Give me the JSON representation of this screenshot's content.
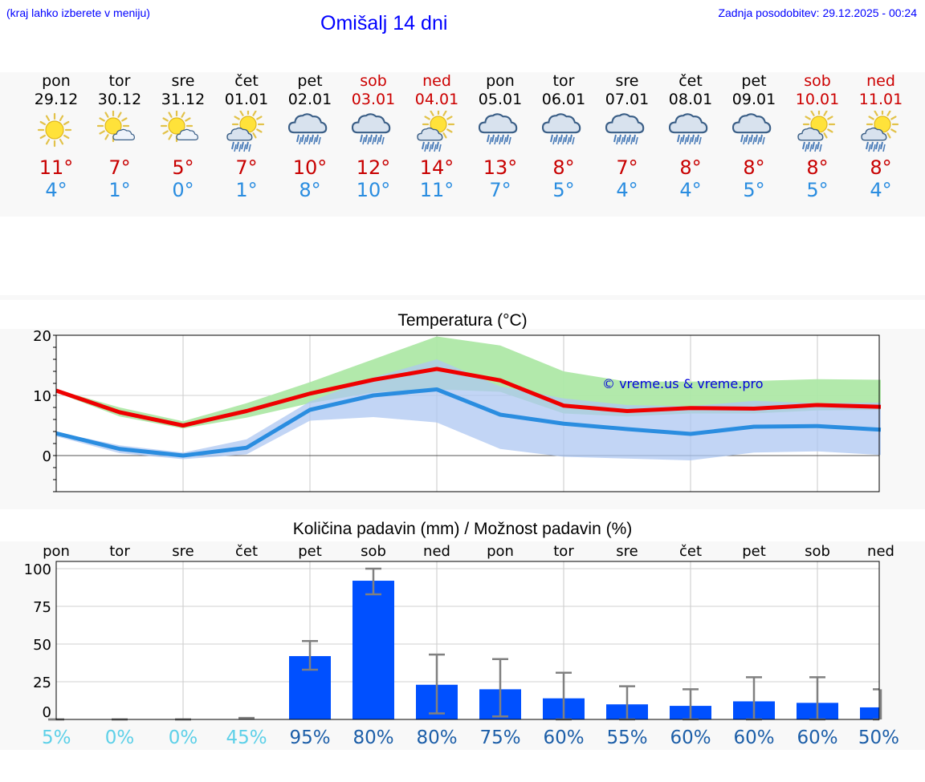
{
  "header": {
    "location_hint": "(kraj lahko izberete v meniju)",
    "title": "Omišalj 14 dni",
    "updated": "Zadnja posodobitev: 29.12.2025 - 00:24"
  },
  "days": [
    {
      "name": "pon",
      "date": "29.12",
      "weekend": false,
      "icon": "sun-icon",
      "tmax": "11°",
      "tmin": "4°"
    },
    {
      "name": "tor",
      "date": "30.12",
      "weekend": false,
      "icon": "sun-cloud-icon",
      "tmax": "7°",
      "tmin": "1°"
    },
    {
      "name": "sre",
      "date": "31.12",
      "weekend": false,
      "icon": "sun-cloud-icon",
      "tmax": "5°",
      "tmin": "0°"
    },
    {
      "name": "čet",
      "date": "01.01",
      "weekend": false,
      "icon": "sun-rain-icon",
      "tmax": "7°",
      "tmin": "1°"
    },
    {
      "name": "pet",
      "date": "02.01",
      "weekend": false,
      "icon": "rain-cloud-icon",
      "tmax": "10°",
      "tmin": "8°"
    },
    {
      "name": "sob",
      "date": "03.01",
      "weekend": true,
      "icon": "rain-cloud-icon",
      "tmax": "12°",
      "tmin": "10°"
    },
    {
      "name": "ned",
      "date": "04.01",
      "weekend": true,
      "icon": "sun-rain-icon",
      "tmax": "14°",
      "tmin": "11°"
    },
    {
      "name": "pon",
      "date": "05.01",
      "weekend": false,
      "icon": "rain-cloud-icon",
      "tmax": "13°",
      "tmin": "7°"
    },
    {
      "name": "tor",
      "date": "06.01",
      "weekend": false,
      "icon": "rain-cloud-icon",
      "tmax": "8°",
      "tmin": "5°"
    },
    {
      "name": "sre",
      "date": "07.01",
      "weekend": false,
      "icon": "rain-cloud-icon",
      "tmax": "7°",
      "tmin": "4°"
    },
    {
      "name": "čet",
      "date": "08.01",
      "weekend": false,
      "icon": "rain-cloud-icon",
      "tmax": "8°",
      "tmin": "4°"
    },
    {
      "name": "pet",
      "date": "09.01",
      "weekend": false,
      "icon": "rain-cloud-icon",
      "tmax": "8°",
      "tmin": "5°"
    },
    {
      "name": "sob",
      "date": "10.01",
      "weekend": true,
      "icon": "sun-rain-icon",
      "tmax": "8°",
      "tmin": "5°"
    },
    {
      "name": "ned",
      "date": "11.01",
      "weekend": true,
      "icon": "sun-rain-icon",
      "tmax": "8°",
      "tmin": "4°"
    }
  ],
  "colors": {
    "max_line": "#ee0000",
    "min_line": "#2a8de0",
    "max_band": "#aee8a6",
    "min_band": "#adc7f2",
    "overlap_band": "#7cc49e",
    "bar": "#0050ff",
    "error": "#808080",
    "pct_low": "#5dd0e8",
    "pct_high": "#1c5ea8"
  },
  "chart_data": [
    {
      "type": "line",
      "title": "Temperatura (°C)",
      "watermark": "© vreme.us & vreme.pro",
      "ylim": [
        -6,
        20
      ],
      "yticks": [
        0,
        10,
        20
      ],
      "x": [
        0,
        1,
        2,
        3,
        4,
        5,
        6,
        7,
        8,
        9,
        10,
        11,
        12,
        13
      ],
      "series": [
        {
          "name": "max",
          "values": [
            10.8,
            7.2,
            5.0,
            7.4,
            10.3,
            12.6,
            14.4,
            12.5,
            8.3,
            7.4,
            7.9,
            7.8,
            8.4,
            8.1
          ]
        },
        {
          "name": "min",
          "values": [
            3.7,
            1.1,
            0.0,
            1.3,
            7.6,
            10.0,
            11.0,
            6.8,
            5.3,
            4.4,
            3.6,
            4.8,
            4.9,
            4.3
          ]
        }
      ],
      "max_band": {
        "low": [
          10.5,
          6.5,
          4.5,
          6.3,
          8.7,
          10.5,
          11.0,
          10.6,
          7.0,
          6.5,
          7.0,
          7.0,
          7.5,
          7.6
        ],
        "high": [
          11.0,
          8.0,
          5.7,
          8.7,
          12.2,
          16.0,
          19.8,
          18.3,
          14.0,
          12.3,
          12.3,
          12.4,
          12.7,
          12.6
        ]
      },
      "min_band": {
        "low": [
          3.2,
          0.4,
          -0.6,
          0.2,
          5.8,
          6.4,
          5.5,
          1.1,
          -0.2,
          -0.5,
          -0.8,
          0.5,
          0.7,
          0.1
        ],
        "high": [
          3.9,
          1.7,
          0.5,
          2.7,
          9.0,
          13.0,
          16.0,
          11.5,
          9.5,
          8.4,
          8.2,
          9.1,
          8.7,
          8.8
        ]
      }
    },
    {
      "type": "bar",
      "title": "Količina padavin (mm) / Možnost padavin (%)",
      "categories": [
        "pon",
        "tor",
        "sre",
        "čet",
        "pet",
        "sob",
        "ned",
        "pon",
        "tor",
        "sre",
        "čet",
        "pet",
        "sob",
        "ned"
      ],
      "ylim": [
        0,
        100
      ],
      "yticks": [
        0,
        25,
        50,
        75,
        100
      ],
      "values": [
        0,
        0,
        0,
        0.5,
        42,
        92,
        23,
        20,
        14,
        10,
        9,
        12,
        11,
        8
      ],
      "error_low": [
        0,
        0,
        0,
        0.5,
        33,
        83,
        4,
        2,
        0,
        0,
        0,
        0,
        0,
        0
      ],
      "error_high": [
        0,
        0,
        0,
        1,
        52,
        100,
        43,
        40,
        31,
        22,
        20,
        28,
        28,
        20
      ],
      "probability": [
        "5%",
        "0%",
        "0%",
        "45%",
        "95%",
        "80%",
        "80%",
        "75%",
        "60%",
        "55%",
        "60%",
        "60%",
        "60%",
        "50%"
      ]
    }
  ]
}
